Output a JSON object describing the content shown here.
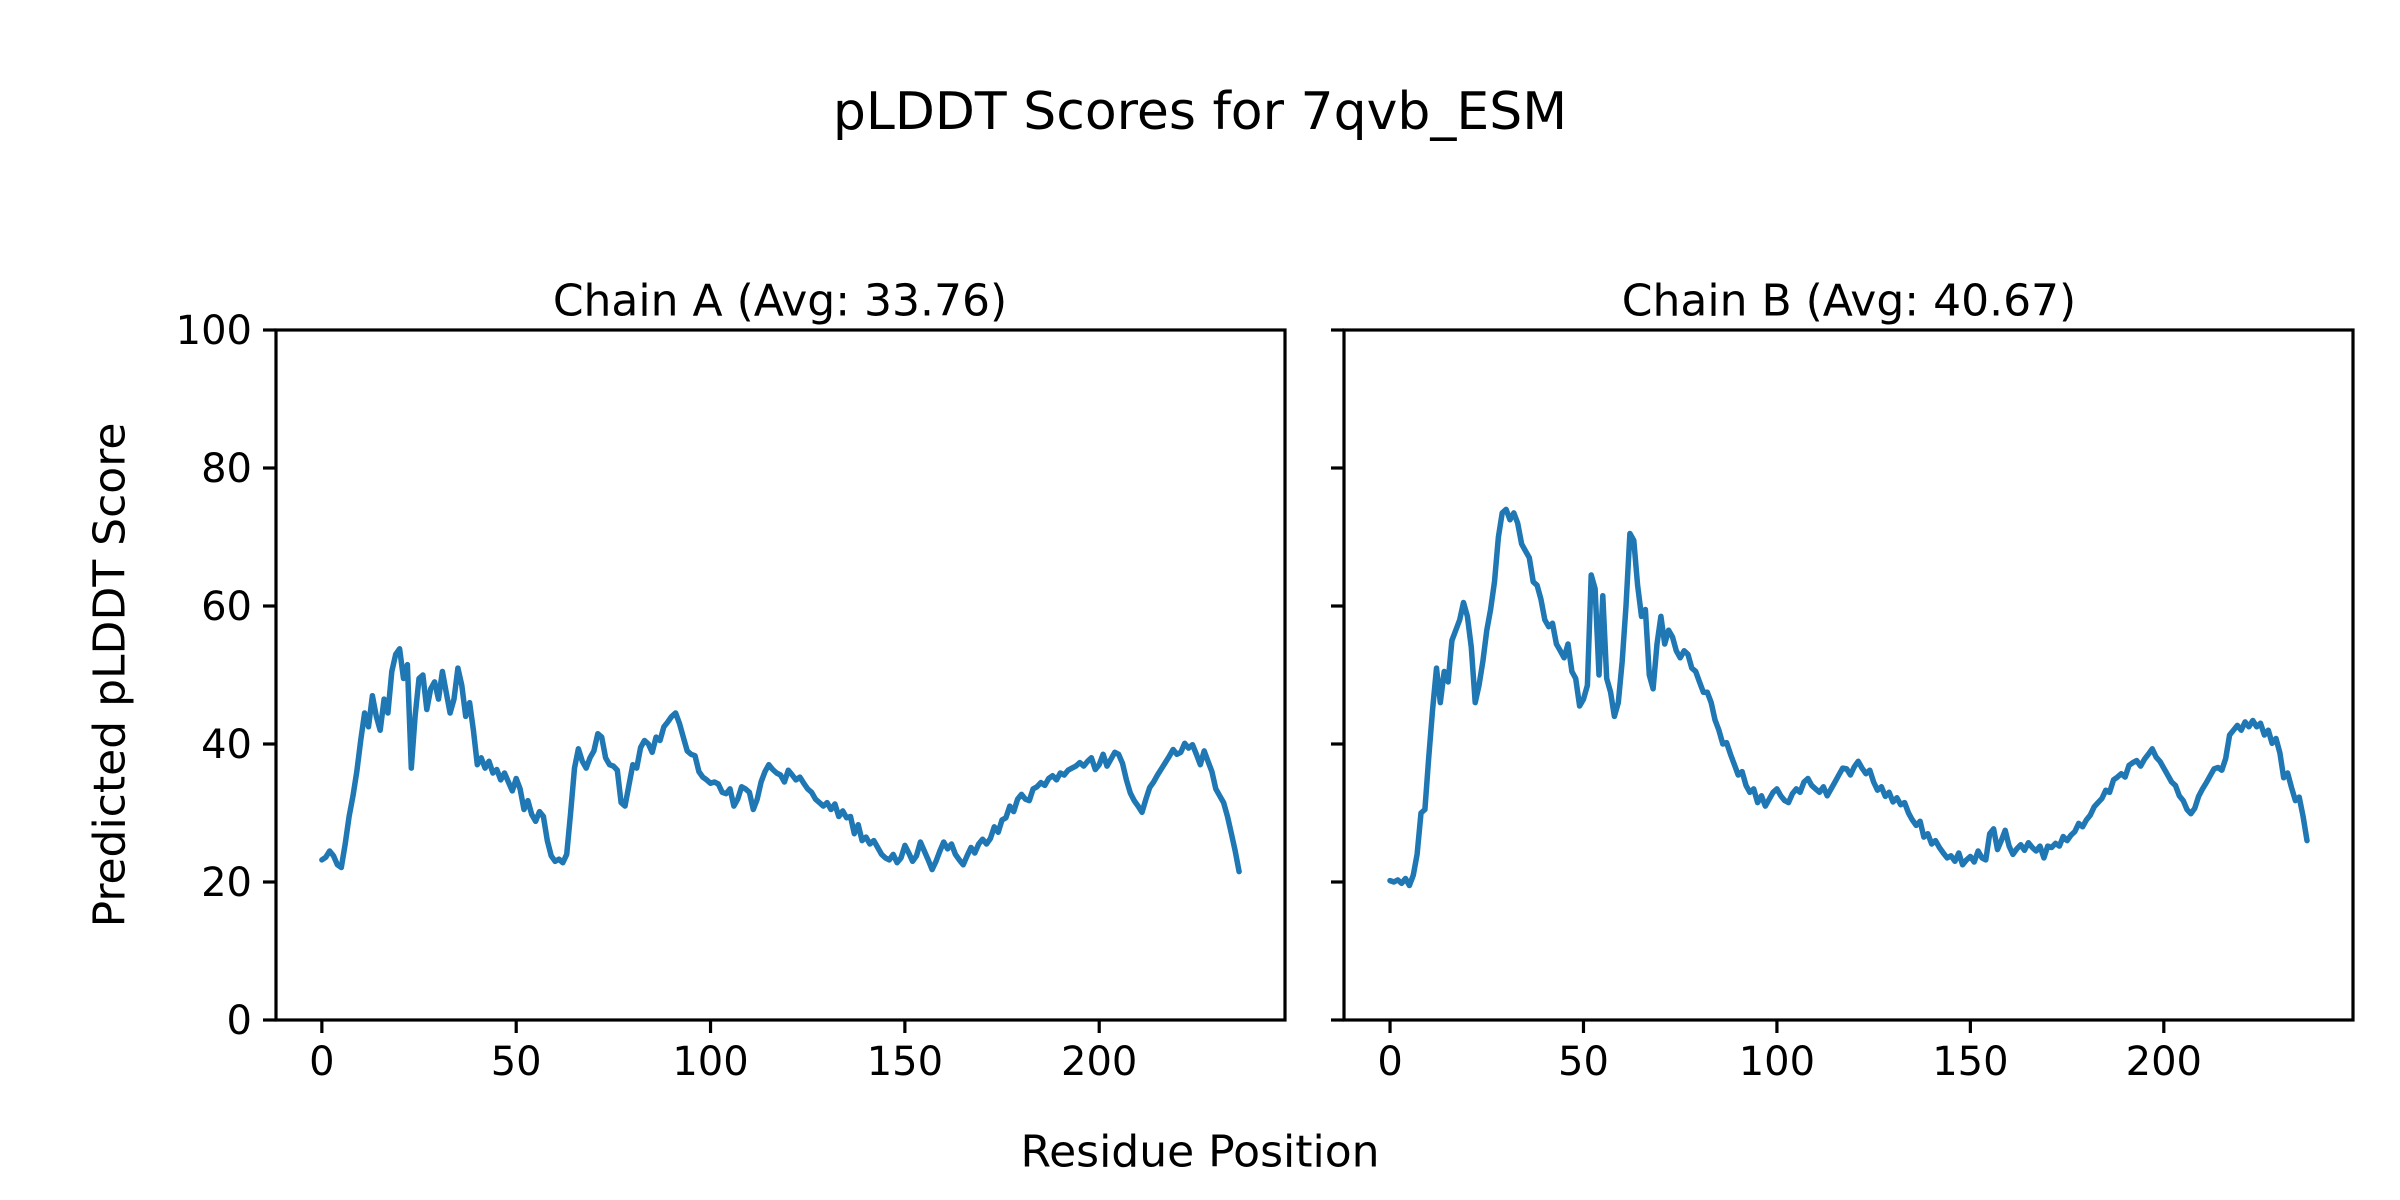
{
  "figure": {
    "suptitle": "pLDDT Scores for 7qvb_ESM",
    "xlabel": "Residue Position",
    "ylabel": "Predicted pLDDT Score",
    "background": "#ffffff",
    "text_color": "#000000"
  },
  "chart_data": [
    {
      "type": "line",
      "name": "chain-a",
      "title": "Chain A (Avg: 33.76)",
      "avg": 33.76,
      "line_color": "#1f77b4",
      "xlabel": "Residue Position",
      "ylabel": "Predicted pLDDT Score",
      "xlim": [
        -11.8,
        247.8
      ],
      "ylim": [
        0,
        100
      ],
      "xticks": [
        0,
        50,
        100,
        150,
        200
      ],
      "yticks": [
        0,
        20,
        40,
        60,
        80,
        100
      ],
      "show_ytick_labels": true,
      "grid": false,
      "legend": "none",
      "x_start": 0,
      "x_step": 1,
      "values": [
        23.2,
        23.6,
        24.5,
        23.8,
        22.5,
        22.1,
        25.5,
        29.5,
        32.5,
        36.0,
        40.5,
        44.5,
        42.5,
        47.0,
        44.0,
        42.0,
        46.5,
        44.5,
        50.5,
        53.0,
        53.8,
        49.5,
        51.5,
        36.5,
        44.0,
        49.5,
        50.0,
        45.0,
        48.0,
        49.0,
        46.5,
        50.5,
        47.5,
        44.5,
        46.5,
        51.0,
        48.5,
        44.0,
        46.0,
        42.0,
        37.0,
        38.0,
        36.5,
        37.5,
        35.8,
        36.3,
        34.8,
        35.8,
        34.5,
        33.2,
        35.0,
        33.5,
        30.5,
        31.8,
        29.8,
        28.8,
        30.2,
        29.5,
        26.0,
        23.8,
        23.0,
        23.3,
        22.8,
        24.0,
        30.0,
        36.5,
        39.3,
        37.5,
        36.5,
        38.0,
        39.0,
        41.5,
        41.0,
        38.0,
        37.0,
        36.8,
        36.2,
        31.5,
        31.0,
        34.0,
        37.0,
        36.5,
        39.5,
        40.5,
        40.0,
        38.8,
        41.0,
        40.5,
        42.5,
        43.2,
        44.0,
        44.5,
        43.0,
        41.0,
        39.0,
        38.5,
        38.3,
        36.0,
        35.2,
        34.8,
        34.3,
        34.5,
        34.2,
        33.0,
        32.8,
        33.5,
        31.0,
        32.0,
        33.8,
        33.5,
        33.0,
        30.5,
        32.0,
        34.5,
        36.0,
        37.0,
        36.3,
        35.8,
        35.5,
        34.5,
        36.2,
        35.5,
        34.8,
        35.2,
        34.3,
        33.5,
        33.0,
        32.0,
        31.5,
        31.0,
        31.5,
        30.5,
        31.3,
        29.5,
        30.3,
        29.3,
        29.5,
        27.0,
        28.3,
        26.0,
        26.5,
        25.5,
        26.0,
        25.0,
        24.0,
        23.5,
        23.2,
        24.0,
        22.8,
        23.5,
        25.3,
        24.2,
        23.0,
        23.8,
        25.8,
        24.5,
        23.2,
        21.8,
        23.0,
        24.5,
        25.8,
        24.8,
        25.5,
        24.0,
        23.2,
        22.5,
        23.8,
        25.0,
        24.2,
        25.5,
        26.2,
        25.5,
        26.3,
        28.0,
        27.2,
        29.0,
        29.3,
        31.0,
        30.2,
        32.0,
        32.7,
        32.0,
        31.8,
        33.5,
        33.8,
        34.4,
        34.0,
        35.0,
        35.4,
        34.8,
        35.8,
        35.5,
        36.2,
        36.5,
        36.8,
        37.3,
        36.8,
        37.5,
        38.0,
        36.3,
        37.0,
        38.5,
        36.8,
        37.8,
        38.8,
        38.5,
        37.2,
        34.8,
        32.9,
        31.8,
        31.0,
        30.1,
        32.0,
        33.7,
        34.5,
        35.5,
        36.4,
        37.3,
        38.2,
        39.2,
        38.5,
        38.8,
        40.1,
        39.4,
        39.9,
        38.5,
        37.0,
        39.0,
        37.5,
        36.0,
        33.5,
        32.5,
        31.5,
        29.5,
        27.0,
        24.5,
        21.5
      ]
    },
    {
      "type": "line",
      "name": "chain-b",
      "title": "Chain B (Avg: 40.67)",
      "avg": 40.67,
      "line_color": "#1f77b4",
      "xlabel": "Residue Position",
      "ylabel": "Predicted pLDDT Score",
      "xlim": [
        -11.9,
        248.9
      ],
      "ylim": [
        0,
        100
      ],
      "xticks": [
        0,
        50,
        100,
        150,
        200
      ],
      "yticks": [
        0,
        20,
        40,
        60,
        80,
        100
      ],
      "show_ytick_labels": false,
      "grid": false,
      "legend": "none",
      "x_start": 0,
      "x_step": 1,
      "values": [
        20.2,
        20.0,
        20.3,
        19.8,
        20.5,
        19.5,
        21.0,
        24.0,
        30.0,
        30.5,
        38.0,
        45.0,
        51.0,
        46.0,
        50.5,
        49.0,
        55.0,
        56.5,
        58.0,
        60.5,
        58.5,
        54.0,
        46.0,
        48.5,
        52.0,
        56.5,
        59.5,
        63.5,
        70.0,
        73.5,
        74.0,
        72.5,
        73.5,
        72.0,
        69.0,
        68.0,
        67.0,
        63.5,
        63.0,
        61.0,
        58.0,
        57.0,
        57.5,
        54.5,
        53.5,
        52.5,
        54.5,
        50.5,
        49.5,
        45.5,
        46.5,
        48.5,
        64.5,
        62.5,
        50.0,
        61.5,
        49.5,
        47.5,
        44.0,
        46.0,
        52.0,
        60.0,
        70.5,
        69.5,
        63.0,
        58.5,
        59.5,
        50.0,
        48.0,
        54.5,
        58.5,
        54.5,
        56.5,
        55.5,
        53.5,
        52.5,
        53.5,
        53.0,
        51.0,
        50.5,
        49.0,
        47.5,
        47.5,
        46.0,
        43.5,
        42.0,
        40.0,
        40.2,
        38.5,
        37.0,
        35.5,
        36.0,
        34.0,
        33.0,
        33.5,
        31.5,
        32.5,
        31.0,
        32.0,
        33.0,
        33.5,
        32.5,
        31.8,
        31.5,
        32.8,
        33.5,
        33.0,
        34.5,
        35.0,
        34.0,
        33.5,
        33.0,
        33.8,
        32.5,
        33.5,
        34.5,
        35.5,
        36.5,
        36.4,
        35.5,
        36.7,
        37.5,
        36.5,
        35.7,
        36.2,
        34.5,
        33.3,
        33.8,
        32.4,
        33.0,
        31.6,
        32.2,
        31.2,
        31.5,
        30.0,
        29.0,
        28.2,
        28.8,
        26.5,
        27.0,
        25.5,
        26.0,
        25.0,
        24.2,
        23.5,
        23.8,
        23.0,
        24.2,
        22.5,
        23.2,
        23.7,
        22.9,
        24.5,
        23.5,
        23.2,
        27.0,
        27.7,
        24.7,
        26.0,
        27.5,
        25.2,
        24.0,
        24.8,
        25.4,
        24.6,
        25.7,
        25.0,
        24.5,
        25.2,
        23.5,
        25.2,
        25.0,
        25.6,
        25.2,
        26.6,
        26.0,
        26.8,
        27.3,
        28.5,
        28.0,
        29.0,
        29.7,
        30.9,
        31.5,
        32.1,
        33.3,
        33.0,
        34.8,
        35.2,
        35.7,
        35.2,
        36.9,
        37.3,
        37.6,
        36.8,
        37.8,
        38.5,
        39.3,
        38.1,
        37.5,
        36.5,
        35.5,
        34.5,
        34.0,
        32.5,
        31.8,
        30.5,
        29.9,
        30.7,
        32.4,
        33.5,
        34.4,
        35.4,
        36.4,
        36.6,
        36.2,
        37.9,
        41.3,
        42.0,
        42.7,
        42.0,
        43.2,
        42.5,
        43.4,
        42.5,
        43.0,
        41.3,
        42.0,
        40.1,
        40.8,
        38.7,
        35.1,
        35.8,
        33.7,
        31.8,
        32.3,
        29.5,
        26.0
      ]
    }
  ]
}
